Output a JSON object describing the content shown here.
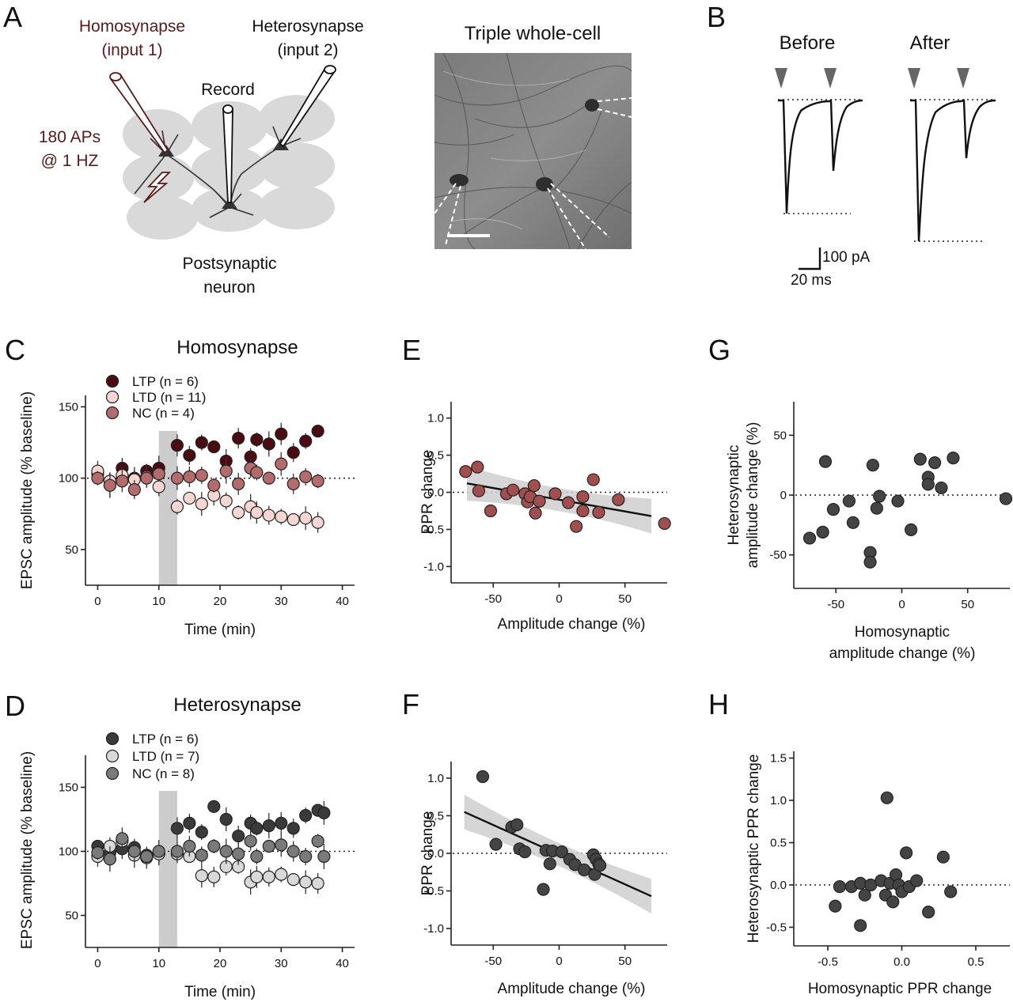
{
  "panels": {
    "A": {
      "letter": "A",
      "homosynapse_label": [
        "Homosynapse",
        "(input 1)"
      ],
      "heterosynapse_label": [
        "Heterosynapse",
        "(input 2)"
      ],
      "record_label": "Record",
      "stim_label": [
        "180 APs",
        "@ 1 HZ"
      ],
      "postsyn_label": [
        "Postsynaptic",
        "neuron"
      ],
      "micrograph_title": "Triple whole-cell",
      "colors": {
        "homo_text": "#5a1a1a",
        "hetero_text": "#111111",
        "tissue": "#d9d9d9"
      }
    },
    "B": {
      "letter": "B",
      "before_label": "Before",
      "after_label": "After",
      "scale_current": "100 pA",
      "scale_time": "20 ms"
    }
  },
  "chart_data": [
    {
      "id": "C",
      "letter": "C",
      "type": "scatter",
      "title": "Homosynapse",
      "xlabel": "Time (min)",
      "ylabel": "EPSC amplitude (% baseline)",
      "xlim": [
        -2,
        42
      ],
      "ylim": [
        25,
        158
      ],
      "xticks": [
        0,
        10,
        20,
        30,
        40
      ],
      "yticks": [
        50,
        100,
        150
      ],
      "ref_line_y": 100,
      "stim_band": [
        10,
        13
      ],
      "series": [
        {
          "name": "LTP (n = 6)",
          "color": "#4a0c10",
          "points": [
            [
              0,
              103
            ],
            [
              2,
              95
            ],
            [
              4,
              107
            ],
            [
              6,
              100
            ],
            [
              8,
              105
            ],
            [
              10,
              107
            ],
            [
              13,
              123
            ],
            [
              15,
              116
            ],
            [
              17,
              125
            ],
            [
              19,
              122
            ],
            [
              21,
              112
            ],
            [
              23,
              128
            ],
            [
              25,
              115
            ],
            [
              26,
              127
            ],
            [
              28,
              124
            ],
            [
              30,
              131
            ],
            [
              32,
              118
            ],
            [
              34,
              126
            ],
            [
              36,
              133
            ]
          ]
        },
        {
          "name": "LTD (n = 11)",
          "color": "#f6d6d2",
          "points": [
            [
              0,
              105
            ],
            [
              2,
              98
            ],
            [
              4,
              102
            ],
            [
              6,
              99
            ],
            [
              8,
              101
            ],
            [
              10,
              94
            ],
            [
              13,
              80
            ],
            [
              15,
              86
            ],
            [
              17,
              82
            ],
            [
              19,
              88
            ],
            [
              21,
              84
            ],
            [
              23,
              76
            ],
            [
              25,
              80
            ],
            [
              26,
              76
            ],
            [
              28,
              74
            ],
            [
              30,
              73
            ],
            [
              32,
              71
            ],
            [
              34,
              72
            ],
            [
              36,
              69
            ]
          ]
        },
        {
          "name": "NC (n = 4)",
          "color": "#b36b6b",
          "points": [
            [
              0,
              100
            ],
            [
              2,
              95
            ],
            [
              4,
              98
            ],
            [
              6,
              92
            ],
            [
              8,
              100
            ],
            [
              10,
              103
            ],
            [
              13,
              100
            ],
            [
              15,
              101
            ],
            [
              17,
              102
            ],
            [
              19,
              95
            ],
            [
              21,
              105
            ],
            [
              23,
              96
            ],
            [
              25,
              107
            ],
            [
              26,
              104
            ],
            [
              28,
              100
            ],
            [
              30,
              110
            ],
            [
              32,
              96
            ],
            [
              34,
              101
            ],
            [
              36,
              98
            ]
          ]
        }
      ]
    },
    {
      "id": "D",
      "letter": "D",
      "type": "scatter",
      "title": "Heterosynapse",
      "xlabel": "Time (min)",
      "ylabel": "EPSC amplitude (% baseline)",
      "xlim": [
        -2,
        42
      ],
      "ylim": [
        25,
        175
      ],
      "xticks": [
        0,
        10,
        20,
        30,
        40
      ],
      "yticks": [
        50,
        100,
        150
      ],
      "ref_line_y": 100,
      "stim_band": [
        10,
        13
      ],
      "series": [
        {
          "name": "LTP (n = 6)",
          "color": "#3a3a3a",
          "points": [
            [
              0,
              104
            ],
            [
              2,
              99
            ],
            [
              4,
              102
            ],
            [
              6,
              103
            ],
            [
              8,
              97
            ],
            [
              10,
              99
            ],
            [
              13,
              118
            ],
            [
              15,
              122
            ],
            [
              17,
              115
            ],
            [
              19,
              135
            ],
            [
              21,
              125
            ],
            [
              23,
              112
            ],
            [
              25,
              122
            ],
            [
              26,
              118
            ],
            [
              28,
              120
            ],
            [
              30,
              122
            ],
            [
              32,
              118
            ],
            [
              34,
              128
            ],
            [
              36,
              132
            ],
            [
              37,
              130
            ]
          ]
        },
        {
          "name": "LTD (n = 7)",
          "color": "#d9d9d9",
          "points": [
            [
              0,
              96
            ],
            [
              2,
              104
            ],
            [
              4,
              108
            ],
            [
              6,
              97
            ],
            [
              8,
              95
            ],
            [
              10,
              98
            ],
            [
              13,
              98
            ],
            [
              15,
              96
            ],
            [
              17,
              81
            ],
            [
              19,
              80
            ],
            [
              21,
              88
            ],
            [
              23,
              88
            ],
            [
              25,
              76
            ],
            [
              26,
              80
            ],
            [
              28,
              80
            ],
            [
              30,
              82
            ],
            [
              32,
              78
            ],
            [
              34,
              76
            ],
            [
              36,
              75
            ]
          ]
        },
        {
          "name": "NC (n = 8)",
          "color": "#7a7a7a",
          "points": [
            [
              0,
              99
            ],
            [
              2,
              94
            ],
            [
              4,
              110
            ],
            [
              6,
              100
            ],
            [
              8,
              96
            ],
            [
              10,
              100
            ],
            [
              13,
              100
            ],
            [
              15,
              104
            ],
            [
              17,
              97
            ],
            [
              19,
              104
            ],
            [
              21,
              100
            ],
            [
              23,
              98
            ],
            [
              25,
              108
            ],
            [
              26,
              96
            ],
            [
              28,
              104
            ],
            [
              30,
              105
            ],
            [
              32,
              100
            ],
            [
              34,
              96
            ],
            [
              36,
              108
            ],
            [
              37,
              96
            ]
          ]
        }
      ]
    },
    {
      "id": "E",
      "letter": "E",
      "type": "scatter",
      "xlabel": "Amplitude change (%)",
      "ylabel": "PPR change",
      "xlim": [
        -82,
        82
      ],
      "ylim": [
        -1.22,
        1.22
      ],
      "xticks": [
        -50,
        0,
        50
      ],
      "yticks": [
        -1.0,
        -0.5,
        0.0,
        0.5,
        1.0
      ],
      "ref_line_y": 0,
      "fit_line": {
        "x": [
          -70,
          70
        ],
        "y": [
          0.12,
          -0.32
        ]
      },
      "series": [
        {
          "name": "",
          "color": "#a04e4e",
          "points": [
            [
              -71,
              0.28
            ],
            [
              -62,
              0.34
            ],
            [
              -61,
              0.02
            ],
            [
              -52,
              -0.25
            ],
            [
              -40,
              -0.02
            ],
            [
              -35,
              0.03
            ],
            [
              -26,
              -0.02
            ],
            [
              -24,
              -0.13
            ],
            [
              -22,
              -0.06
            ],
            [
              -19,
              0.09
            ],
            [
              -18,
              -0.28
            ],
            [
              -15,
              -0.12
            ],
            [
              -3,
              -0.02
            ],
            [
              7,
              -0.14
            ],
            [
              13,
              -0.46
            ],
            [
              18,
              -0.06
            ],
            [
              18,
              -0.25
            ],
            [
              26,
              0.17
            ],
            [
              30,
              -0.27
            ],
            [
              45,
              -0.1
            ],
            [
              80,
              -0.42
            ]
          ]
        }
      ]
    },
    {
      "id": "F",
      "letter": "F",
      "type": "scatter",
      "xlabel": "Amplitude change (%)",
      "ylabel": "PPR change",
      "xlim": [
        -82,
        82
      ],
      "ylim": [
        -1.22,
        1.22
      ],
      "xticks": [
        -50,
        0,
        50
      ],
      "yticks": [
        -1.0,
        -0.5,
        0.0,
        0.5,
        1.0
      ],
      "ref_line_y": 0,
      "fit_line": {
        "x": [
          -72,
          70
        ],
        "y": [
          0.55,
          -0.57
        ]
      },
      "series": [
        {
          "name": "",
          "color": "#444444",
          "points": [
            [
              -58,
              1.02
            ],
            [
              -48,
              0.12
            ],
            [
              -36,
              0.35
            ],
            [
              -32,
              0.38
            ],
            [
              -30,
              0.06
            ],
            [
              -26,
              0.02
            ],
            [
              -12,
              -0.48
            ],
            [
              -10,
              0.04
            ],
            [
              -5,
              0.03
            ],
            [
              -7,
              -0.14
            ],
            [
              2,
              0.02
            ],
            [
              8,
              -0.08
            ],
            [
              12,
              -0.15
            ],
            [
              19,
              -0.22
            ],
            [
              26,
              -0.02
            ],
            [
              27,
              -0.28
            ],
            [
              28,
              -0.08
            ],
            [
              30,
              -0.14
            ],
            [
              31,
              -0.16
            ]
          ]
        }
      ]
    },
    {
      "id": "G",
      "letter": "G",
      "type": "scatter",
      "xlabel": "Homosynaptic\namplitude change (%)",
      "ylabel": "Heterosynaptic\namplitude change (%)",
      "xlim": [
        -82,
        82
      ],
      "ylim": [
        -78,
        78
      ],
      "xticks": [
        -50,
        0,
        50
      ],
      "yticks": [
        -50,
        0,
        50
      ],
      "ref_line_y": 0,
      "series": [
        {
          "name": "",
          "color": "#444444",
          "points": [
            [
              -70,
              -36
            ],
            [
              -60,
              -31
            ],
            [
              -58,
              28
            ],
            [
              -52,
              -12
            ],
            [
              -40,
              -5
            ],
            [
              -37,
              -23
            ],
            [
              -24,
              -48
            ],
            [
              -24,
              -56
            ],
            [
              -22,
              25
            ],
            [
              -19,
              -11
            ],
            [
              -17,
              -1
            ],
            [
              -3,
              -5
            ],
            [
              7,
              -29
            ],
            [
              14,
              30
            ],
            [
              20,
              15
            ],
            [
              20,
              9
            ],
            [
              25,
              27
            ],
            [
              30,
              6
            ],
            [
              39,
              31
            ],
            [
              79,
              -3
            ]
          ]
        }
      ]
    },
    {
      "id": "H",
      "letter": "H",
      "type": "scatter",
      "xlabel": "Homosynaptic PPR change",
      "ylabel": "Heterosynaptic PPR change",
      "xlim": [
        -0.73,
        0.73
      ],
      "ylim": [
        -0.72,
        1.58
      ],
      "xticks": [
        -0.5,
        0.0,
        0.5
      ],
      "yticks": [
        -0.5,
        0.0,
        0.5,
        1.0,
        1.5
      ],
      "ref_line_y": 0,
      "series": [
        {
          "name": "",
          "color": "#444444",
          "points": [
            [
              -0.45,
              -0.25
            ],
            [
              -0.42,
              -0.02
            ],
            [
              -0.34,
              -0.02
            ],
            [
              -0.28,
              0.02
            ],
            [
              -0.28,
              -0.48
            ],
            [
              -0.25,
              -0.12
            ],
            [
              -0.21,
              0.0
            ],
            [
              -0.14,
              0.05
            ],
            [
              -0.11,
              -0.12
            ],
            [
              -0.1,
              1.03
            ],
            [
              -0.08,
              0.02
            ],
            [
              -0.06,
              -0.2
            ],
            [
              -0.04,
              0.12
            ],
            [
              -0.02,
              0.0
            ],
            [
              0.0,
              -0.08
            ],
            [
              0.03,
              0.38
            ],
            [
              0.05,
              -0.02
            ],
            [
              0.1,
              0.05
            ],
            [
              0.18,
              -0.32
            ],
            [
              0.28,
              0.33
            ],
            [
              0.33,
              -0.08
            ]
          ]
        }
      ]
    }
  ]
}
